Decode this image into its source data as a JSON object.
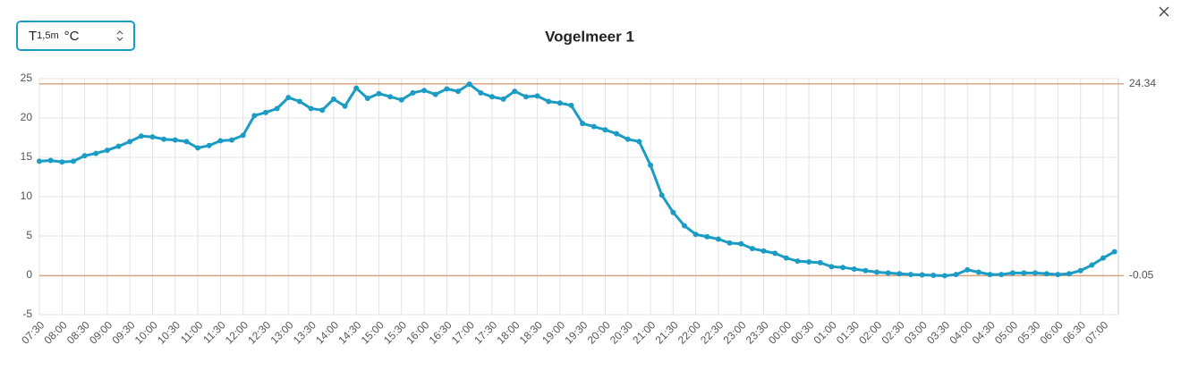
{
  "selector": {
    "label": "T",
    "subscript": "1,5m",
    "unit": "°C"
  },
  "chart_data": {
    "type": "line",
    "title": "Vogelmeer 1",
    "categories": [
      "07:30",
      null,
      "08:00",
      null,
      "08:30",
      null,
      "09:00",
      null,
      "09:30",
      null,
      "10:00",
      null,
      "10:30",
      null,
      "11:00",
      null,
      "11:30",
      null,
      "12:00",
      null,
      "12:30",
      null,
      "13:00",
      null,
      "13:30",
      null,
      "14:00",
      null,
      "14:30",
      null,
      "15:00",
      null,
      "15:30",
      null,
      "16:00",
      null,
      "16:30",
      null,
      "17:00",
      null,
      "17:30",
      null,
      "18:00",
      null,
      "18:30",
      null,
      "19:00",
      null,
      "19:30",
      null,
      "20:00",
      null,
      "20:30",
      null,
      "21:00",
      null,
      "21:30",
      null,
      "22:00",
      null,
      "22:30",
      null,
      "23:00",
      null,
      "23:30",
      null,
      "00:00",
      null,
      "00:30",
      null,
      "01:00",
      null,
      "01:30",
      null,
      "02:00",
      null,
      "02:30",
      null,
      "03:00",
      null,
      "03:30",
      null,
      "04:00",
      null,
      "04:30",
      null,
      "05:00",
      null,
      "05:30",
      null,
      "06:00",
      null,
      "06:30",
      null,
      "07:00",
      null
    ],
    "series": [
      {
        "name": "T1,5m",
        "color": "#1b9cc4",
        "values": [
          14.5,
          14.6,
          14.4,
          14.5,
          15.2,
          15.5,
          15.9,
          16.4,
          17.0,
          17.7,
          17.6,
          17.3,
          17.2,
          17.0,
          16.2,
          16.5,
          17.1,
          17.2,
          17.8,
          20.3,
          20.7,
          21.2,
          22.6,
          22.1,
          21.2,
          21.0,
          22.4,
          21.5,
          23.8,
          22.5,
          23.1,
          22.7,
          22.3,
          23.2,
          23.5,
          23.0,
          23.7,
          23.4,
          24.3,
          23.2,
          22.7,
          22.4,
          23.4,
          22.7,
          22.8,
          22.1,
          21.9,
          21.6,
          19.3,
          18.9,
          18.5,
          18.0,
          17.3,
          17.0,
          14.0,
          10.2,
          8.0,
          6.3,
          5.2,
          4.9,
          4.6,
          4.1,
          4.0,
          3.4,
          3.1,
          2.8,
          2.2,
          1.8,
          1.7,
          1.6,
          1.1,
          1.0,
          0.8,
          0.6,
          0.4,
          0.3,
          0.2,
          0.1,
          0.05,
          0.0,
          -0.05,
          0.1,
          0.7,
          0.4,
          0.1,
          0.1,
          0.3,
          0.3,
          0.3,
          0.2,
          0.1,
          0.2,
          0.6,
          1.3,
          2.2,
          3.0
        ]
      }
    ],
    "reference_lines": [
      24.34,
      -0.05
    ],
    "reference_color": "#d9a07a",
    "ylim": [
      -5,
      25
    ],
    "yticks": [
      -5,
      0,
      5,
      10,
      15,
      20,
      25
    ],
    "grid": true
  }
}
